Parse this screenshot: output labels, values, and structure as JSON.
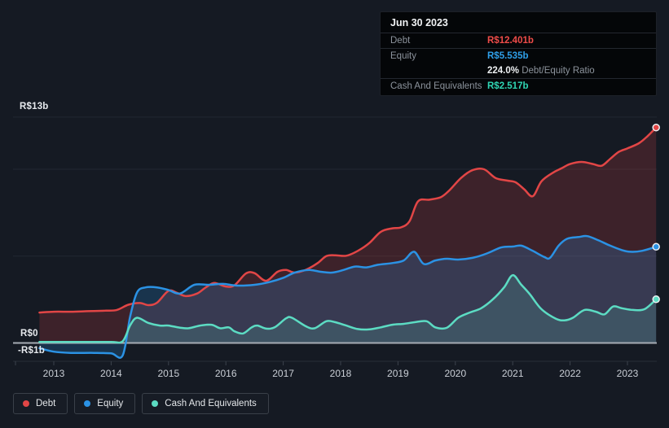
{
  "tooltip": {
    "date": "Jun 30 2023",
    "debt": {
      "label": "Debt",
      "value": "R$12.401b"
    },
    "equity": {
      "label": "Equity",
      "value": "R$5.535b"
    },
    "ratio": {
      "value": "224.0%",
      "label": " Debt/Equity Ratio"
    },
    "cash": {
      "label": "Cash And Equivalents",
      "value": "R$2.517b"
    }
  },
  "legend": {
    "debt": "Debt",
    "equity": "Equity",
    "cash": "Cash And Equivalents"
  },
  "y_axis": {
    "top": "R$13b",
    "zero": "R$0",
    "neg": "-R$1b"
  },
  "x_axis": {
    "years": [
      "2013",
      "2014",
      "2015",
      "2016",
      "2017",
      "2018",
      "2019",
      "2020",
      "2021",
      "2022",
      "2023"
    ]
  },
  "colors": {
    "debt": "#e24646",
    "equity": "#2b92e4",
    "cash": "#5cdcc3",
    "debt_value": "#ef4c49",
    "equity_value": "#2f9fe8",
    "cash_value": "#2fd5b3",
    "debt_fill": "rgba(226,70,70,0.20)",
    "equity_fill": "rgba(43,146,228,0.22)",
    "cash_fill": "rgba(92,220,195,0.16)",
    "zero_axis": "#a6acb4",
    "gridline": "#222833",
    "axis_border": "#272d37",
    "tick": "#3c424c",
    "dot_ring": "#edf0f3"
  },
  "chart_data": {
    "type": "area",
    "title": "Debt, Equity and Cash history (R$ billions)",
    "x_unit": "year",
    "x_range": [
      2012.75,
      2023.5
    ],
    "ylim": [
      -1,
      13
    ],
    "grid_values": [
      13,
      10,
      5
    ],
    "legend_position": "bottom-left",
    "series": [
      {
        "key": "debt",
        "name": "Debt",
        "points": [
          [
            2012.75,
            1.75
          ],
          [
            2013,
            1.8
          ],
          [
            2013.3,
            1.8
          ],
          [
            2013.6,
            1.83
          ],
          [
            2013.9,
            1.86
          ],
          [
            2014.1,
            1.9
          ],
          [
            2014.3,
            2.2
          ],
          [
            2014.5,
            2.3
          ],
          [
            2014.65,
            2.18
          ],
          [
            2014.8,
            2.32
          ],
          [
            2015,
            3.0
          ],
          [
            2015.15,
            2.88
          ],
          [
            2015.3,
            2.7
          ],
          [
            2015.5,
            2.85
          ],
          [
            2015.65,
            3.2
          ],
          [
            2015.8,
            3.45
          ],
          [
            2016,
            3.25
          ],
          [
            2016.15,
            3.32
          ],
          [
            2016.35,
            4.0
          ],
          [
            2016.5,
            4.02
          ],
          [
            2016.7,
            3.58
          ],
          [
            2016.9,
            4.1
          ],
          [
            2017.05,
            4.2
          ],
          [
            2017.2,
            4.05
          ],
          [
            2017.4,
            4.22
          ],
          [
            2017.6,
            4.6
          ],
          [
            2017.75,
            5.0
          ],
          [
            2017.9,
            5.05
          ],
          [
            2018.1,
            5.02
          ],
          [
            2018.3,
            5.3
          ],
          [
            2018.5,
            5.75
          ],
          [
            2018.7,
            6.4
          ],
          [
            2018.9,
            6.6
          ],
          [
            2019.05,
            6.65
          ],
          [
            2019.2,
            7.0
          ],
          [
            2019.35,
            8.15
          ],
          [
            2019.55,
            8.25
          ],
          [
            2019.75,
            8.4
          ],
          [
            2019.9,
            8.8
          ],
          [
            2020.1,
            9.5
          ],
          [
            2020.3,
            9.95
          ],
          [
            2020.5,
            10.0
          ],
          [
            2020.7,
            9.5
          ],
          [
            2020.9,
            9.35
          ],
          [
            2021.05,
            9.25
          ],
          [
            2021.2,
            8.85
          ],
          [
            2021.35,
            8.45
          ],
          [
            2021.5,
            9.3
          ],
          [
            2021.7,
            9.8
          ],
          [
            2021.85,
            10.05
          ],
          [
            2022,
            10.3
          ],
          [
            2022.2,
            10.42
          ],
          [
            2022.4,
            10.3
          ],
          [
            2022.55,
            10.2
          ],
          [
            2022.7,
            10.6
          ],
          [
            2022.85,
            11.0
          ],
          [
            2023,
            11.2
          ],
          [
            2023.2,
            11.5
          ],
          [
            2023.35,
            11.9
          ],
          [
            2023.5,
            12.401
          ]
        ]
      },
      {
        "key": "equity",
        "name": "Equity",
        "points": [
          [
            2012.75,
            -0.3
          ],
          [
            2013,
            -0.5
          ],
          [
            2013.3,
            -0.57
          ],
          [
            2013.7,
            -0.57
          ],
          [
            2014,
            -0.6
          ],
          [
            2014.2,
            -0.72
          ],
          [
            2014.33,
            1.5
          ],
          [
            2014.45,
            2.9
          ],
          [
            2014.6,
            3.2
          ],
          [
            2014.8,
            3.2
          ],
          [
            2015,
            3.05
          ],
          [
            2015.2,
            2.85
          ],
          [
            2015.45,
            3.35
          ],
          [
            2015.7,
            3.35
          ],
          [
            2015.95,
            3.4
          ],
          [
            2016.2,
            3.3
          ],
          [
            2016.5,
            3.35
          ],
          [
            2016.75,
            3.5
          ],
          [
            2017,
            3.75
          ],
          [
            2017.2,
            4.05
          ],
          [
            2017.45,
            4.2
          ],
          [
            2017.65,
            4.1
          ],
          [
            2017.85,
            4.05
          ],
          [
            2018.05,
            4.2
          ],
          [
            2018.25,
            4.4
          ],
          [
            2018.45,
            4.35
          ],
          [
            2018.65,
            4.5
          ],
          [
            2018.9,
            4.6
          ],
          [
            2019.1,
            4.75
          ],
          [
            2019.28,
            5.25
          ],
          [
            2019.45,
            4.55
          ],
          [
            2019.65,
            4.75
          ],
          [
            2019.85,
            4.85
          ],
          [
            2020.05,
            4.8
          ],
          [
            2020.3,
            4.9
          ],
          [
            2020.55,
            5.15
          ],
          [
            2020.8,
            5.5
          ],
          [
            2021,
            5.55
          ],
          [
            2021.15,
            5.6
          ],
          [
            2021.35,
            5.3
          ],
          [
            2021.55,
            4.95
          ],
          [
            2021.65,
            4.9
          ],
          [
            2021.8,
            5.6
          ],
          [
            2021.95,
            6.0
          ],
          [
            2022.15,
            6.1
          ],
          [
            2022.3,
            6.15
          ],
          [
            2022.5,
            5.9
          ],
          [
            2022.7,
            5.6
          ],
          [
            2022.9,
            5.35
          ],
          [
            2023.05,
            5.25
          ],
          [
            2023.25,
            5.3
          ],
          [
            2023.5,
            5.535
          ]
        ]
      },
      {
        "key": "cash",
        "name": "Cash And Equivalents",
        "points": [
          [
            2012.75,
            0.06
          ],
          [
            2013,
            0.06
          ],
          [
            2013.5,
            0.06
          ],
          [
            2014,
            0.06
          ],
          [
            2014.2,
            0.1
          ],
          [
            2014.33,
            1.0
          ],
          [
            2014.45,
            1.45
          ],
          [
            2014.65,
            1.15
          ],
          [
            2014.85,
            1.0
          ],
          [
            2015,
            1.0
          ],
          [
            2015.2,
            0.88
          ],
          [
            2015.35,
            0.85
          ],
          [
            2015.55,
            1.0
          ],
          [
            2015.75,
            1.05
          ],
          [
            2015.9,
            0.85
          ],
          [
            2016.05,
            0.9
          ],
          [
            2016.15,
            0.67
          ],
          [
            2016.3,
            0.55
          ],
          [
            2016.45,
            0.9
          ],
          [
            2016.55,
            1.0
          ],
          [
            2016.7,
            0.83
          ],
          [
            2016.85,
            0.9
          ],
          [
            2017.05,
            1.42
          ],
          [
            2017.15,
            1.45
          ],
          [
            2017.4,
            0.95
          ],
          [
            2017.55,
            0.85
          ],
          [
            2017.75,
            1.25
          ],
          [
            2017.9,
            1.2
          ],
          [
            2018.1,
            1.0
          ],
          [
            2018.3,
            0.8
          ],
          [
            2018.5,
            0.78
          ],
          [
            2018.7,
            0.9
          ],
          [
            2018.9,
            1.05
          ],
          [
            2019.1,
            1.1
          ],
          [
            2019.3,
            1.2
          ],
          [
            2019.5,
            1.25
          ],
          [
            2019.65,
            0.9
          ],
          [
            2019.85,
            0.87
          ],
          [
            2020.05,
            1.45
          ],
          [
            2020.25,
            1.75
          ],
          [
            2020.45,
            2.0
          ],
          [
            2020.65,
            2.5
          ],
          [
            2020.85,
            3.2
          ],
          [
            2021,
            3.9
          ],
          [
            2021.15,
            3.35
          ],
          [
            2021.3,
            2.8
          ],
          [
            2021.5,
            1.95
          ],
          [
            2021.75,
            1.4
          ],
          [
            2021.9,
            1.3
          ],
          [
            2022.05,
            1.45
          ],
          [
            2022.25,
            1.9
          ],
          [
            2022.45,
            1.8
          ],
          [
            2022.6,
            1.65
          ],
          [
            2022.75,
            2.1
          ],
          [
            2022.9,
            2.0
          ],
          [
            2023.1,
            1.9
          ],
          [
            2023.3,
            1.95
          ],
          [
            2023.5,
            2.517
          ]
        ]
      }
    ]
  }
}
